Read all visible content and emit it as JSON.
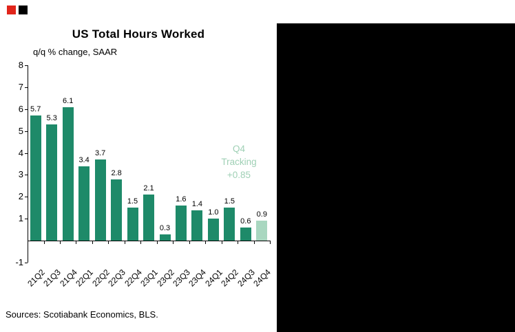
{
  "footer": {
    "sources": "Sources: Scotiabank Economics, BLS."
  },
  "colors": {
    "bar": "#1e8a69",
    "tracking_bar": "#a9d7c0",
    "annotation_text": "#9fd0b5",
    "accent_red": "#e1251b",
    "panel_black": "#000000",
    "axis": "#000000"
  },
  "chart_data": {
    "type": "bar",
    "title": "US Total Hours Worked",
    "subtitle": "q/q % change, SAAR",
    "categories": [
      "21Q2",
      "21Q3",
      "21Q4",
      "22Q1",
      "22Q2",
      "22Q3",
      "22Q4",
      "23Q1",
      "23Q2",
      "23Q3",
      "23Q4",
      "24Q1",
      "24Q2",
      "24Q3",
      "24Q4"
    ],
    "values": [
      5.7,
      5.3,
      6.1,
      3.4,
      3.7,
      2.8,
      1.5,
      2.1,
      0.3,
      1.6,
      1.4,
      1.0,
      1.5,
      0.6,
      0.9
    ],
    "highlight_index": 14,
    "ylim": [
      -1,
      8
    ],
    "y_ticks": [
      8,
      7,
      6,
      5,
      4,
      3,
      2,
      1,
      -1
    ],
    "grid": false,
    "legend": "none",
    "annotation": {
      "lines": [
        "Q4",
        "Tracking",
        "+0.85"
      ]
    }
  }
}
